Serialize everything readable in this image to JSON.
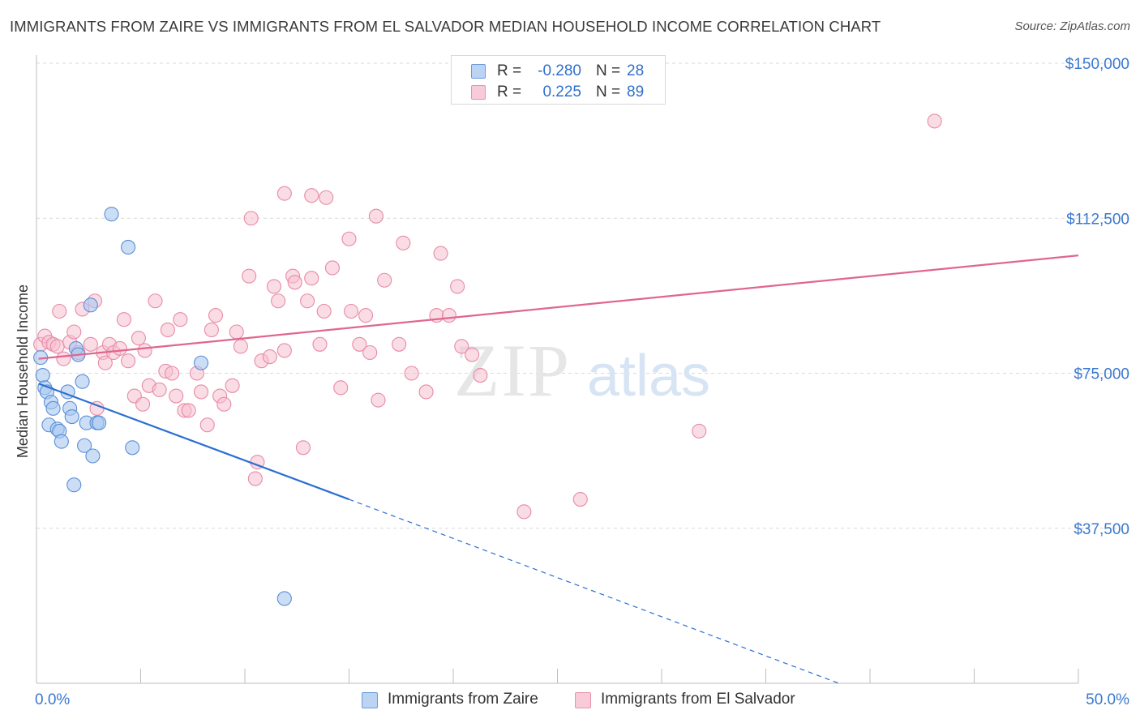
{
  "header": {
    "title": "IMMIGRANTS FROM ZAIRE VS IMMIGRANTS FROM EL SALVADOR MEDIAN HOUSEHOLD INCOME CORRELATION CHART",
    "source": "Source: ZipAtlas.com"
  },
  "watermark": {
    "zip": "ZIP",
    "atlas": "atlas"
  },
  "colors": {
    "zaire_fill": "#a9c8f0",
    "zaire_stroke": "#5b8fd6",
    "zaire_line": "#2b6fd0",
    "salvador_fill": "#f6bfd0",
    "salvador_stroke": "#e88aa8",
    "salvador_line": "#e0668e",
    "axis_label": "#3b78d0",
    "grid": "#d9d9d9"
  },
  "legend": {
    "rows": [
      {
        "r_label": "R =",
        "r_value": "-0.280",
        "n_label": "N =",
        "n_value": "28"
      },
      {
        "r_label": "R =",
        "r_value": "0.225",
        "n_label": "N =",
        "n_value": "89"
      }
    ]
  },
  "chart_data": {
    "type": "scatter",
    "title": "IMMIGRANTS FROM ZAIRE VS IMMIGRANTS FROM EL SALVADOR MEDIAN HOUSEHOLD INCOME CORRELATION CHART",
    "xlabel": "",
    "ylabel": "Median Household Income",
    "xlim": [
      0,
      50
    ],
    "ylim": [
      0,
      155000
    ],
    "x_tick_labels": [
      "0.0%",
      "50.0%"
    ],
    "y_ticks": [
      37500,
      75000,
      112500,
      150000
    ],
    "y_tick_labels": [
      "$37,500",
      "$75,000",
      "$112,500",
      "$150,000"
    ],
    "grid": true,
    "legend_position": "bottom",
    "series": [
      {
        "name": "Immigrants from Zaire",
        "r": -0.28,
        "n": 28,
        "trend": {
          "x0": 0.1,
          "y0": 72500,
          "x1": 15.0,
          "y1": 44500,
          "dash_x1": 38.5,
          "dash_y1": 0
        },
        "points": [
          [
            0.2,
            78800
          ],
          [
            0.3,
            74500
          ],
          [
            0.4,
            71500
          ],
          [
            0.5,
            70500
          ],
          [
            0.6,
            62500
          ],
          [
            0.7,
            68000
          ],
          [
            0.8,
            66500
          ],
          [
            1.0,
            61500
          ],
          [
            1.1,
            61000
          ],
          [
            1.2,
            58500
          ],
          [
            1.5,
            70500
          ],
          [
            1.6,
            66500
          ],
          [
            1.7,
            64500
          ],
          [
            1.8,
            48000
          ],
          [
            1.9,
            81000
          ],
          [
            2.0,
            79500
          ],
          [
            2.2,
            73000
          ],
          [
            2.3,
            57500
          ],
          [
            2.4,
            63000
          ],
          [
            2.6,
            91500
          ],
          [
            2.7,
            55000
          ],
          [
            2.9,
            63000
          ],
          [
            3.0,
            63000
          ],
          [
            3.6,
            113500
          ],
          [
            4.4,
            105500
          ],
          [
            4.6,
            57000
          ],
          [
            7.9,
            77500
          ],
          [
            11.9,
            20500
          ]
        ]
      },
      {
        "name": "Immigrants from El Salvador",
        "r": 0.225,
        "n": 89,
        "trend": {
          "x0": 0.1,
          "y0": 78500,
          "x1": 50.0,
          "y1": 103500
        },
        "points": [
          [
            0.2,
            82000
          ],
          [
            0.4,
            84000
          ],
          [
            0.6,
            82500
          ],
          [
            0.8,
            82000
          ],
          [
            1.0,
            81500
          ],
          [
            1.1,
            90000
          ],
          [
            1.3,
            78500
          ],
          [
            1.6,
            82500
          ],
          [
            1.8,
            85000
          ],
          [
            2.0,
            80000
          ],
          [
            2.2,
            90500
          ],
          [
            2.6,
            82000
          ],
          [
            2.8,
            92500
          ],
          [
            2.9,
            66500
          ],
          [
            3.2,
            80000
          ],
          [
            3.3,
            77500
          ],
          [
            3.5,
            82000
          ],
          [
            3.7,
            80000
          ],
          [
            4.0,
            81000
          ],
          [
            4.2,
            88000
          ],
          [
            4.4,
            78000
          ],
          [
            4.7,
            69500
          ],
          [
            4.9,
            83500
          ],
          [
            5.1,
            67500
          ],
          [
            5.2,
            80500
          ],
          [
            5.4,
            72000
          ],
          [
            5.7,
            92500
          ],
          [
            5.9,
            71000
          ],
          [
            6.2,
            75500
          ],
          [
            6.3,
            85500
          ],
          [
            6.5,
            75000
          ],
          [
            6.7,
            69500
          ],
          [
            6.9,
            88000
          ],
          [
            7.1,
            66000
          ],
          [
            7.3,
            66000
          ],
          [
            7.7,
            75000
          ],
          [
            7.9,
            70500
          ],
          [
            8.2,
            62500
          ],
          [
            8.4,
            85500
          ],
          [
            8.6,
            89000
          ],
          [
            8.8,
            69500
          ],
          [
            9.0,
            67500
          ],
          [
            9.4,
            72000
          ],
          [
            9.6,
            85000
          ],
          [
            9.8,
            81500
          ],
          [
            10.2,
            98500
          ],
          [
            10.3,
            112500
          ],
          [
            10.6,
            53500
          ],
          [
            10.5,
            49500
          ],
          [
            10.8,
            78000
          ],
          [
            11.2,
            79000
          ],
          [
            11.4,
            96000
          ],
          [
            11.6,
            92500
          ],
          [
            11.9,
            80500
          ],
          [
            11.9,
            118500
          ],
          [
            12.3,
            98500
          ],
          [
            12.4,
            97000
          ],
          [
            12.8,
            57000
          ],
          [
            13.0,
            92500
          ],
          [
            13.2,
            98000
          ],
          [
            13.2,
            118000
          ],
          [
            13.6,
            82000
          ],
          [
            13.8,
            90000
          ],
          [
            13.9,
            117500
          ],
          [
            14.2,
            100500
          ],
          [
            14.6,
            71500
          ],
          [
            15.0,
            107500
          ],
          [
            15.1,
            90000
          ],
          [
            15.5,
            82000
          ],
          [
            15.8,
            89000
          ],
          [
            16.0,
            80000
          ],
          [
            16.3,
            113000
          ],
          [
            16.4,
            68500
          ],
          [
            16.7,
            97500
          ],
          [
            17.4,
            82000
          ],
          [
            17.6,
            106500
          ],
          [
            18.0,
            75000
          ],
          [
            18.7,
            70500
          ],
          [
            19.2,
            89000
          ],
          [
            19.4,
            104000
          ],
          [
            19.8,
            89000
          ],
          [
            20.2,
            96000
          ],
          [
            20.4,
            81500
          ],
          [
            20.9,
            79500
          ],
          [
            21.3,
            74500
          ],
          [
            23.4,
            41500
          ],
          [
            26.1,
            44500
          ],
          [
            31.8,
            61000
          ],
          [
            43.1,
            136000
          ]
        ]
      }
    ]
  },
  "bottom_legend": [
    {
      "label": "Immigrants from Zaire"
    },
    {
      "label": "Immigrants from El Salvador"
    }
  ]
}
